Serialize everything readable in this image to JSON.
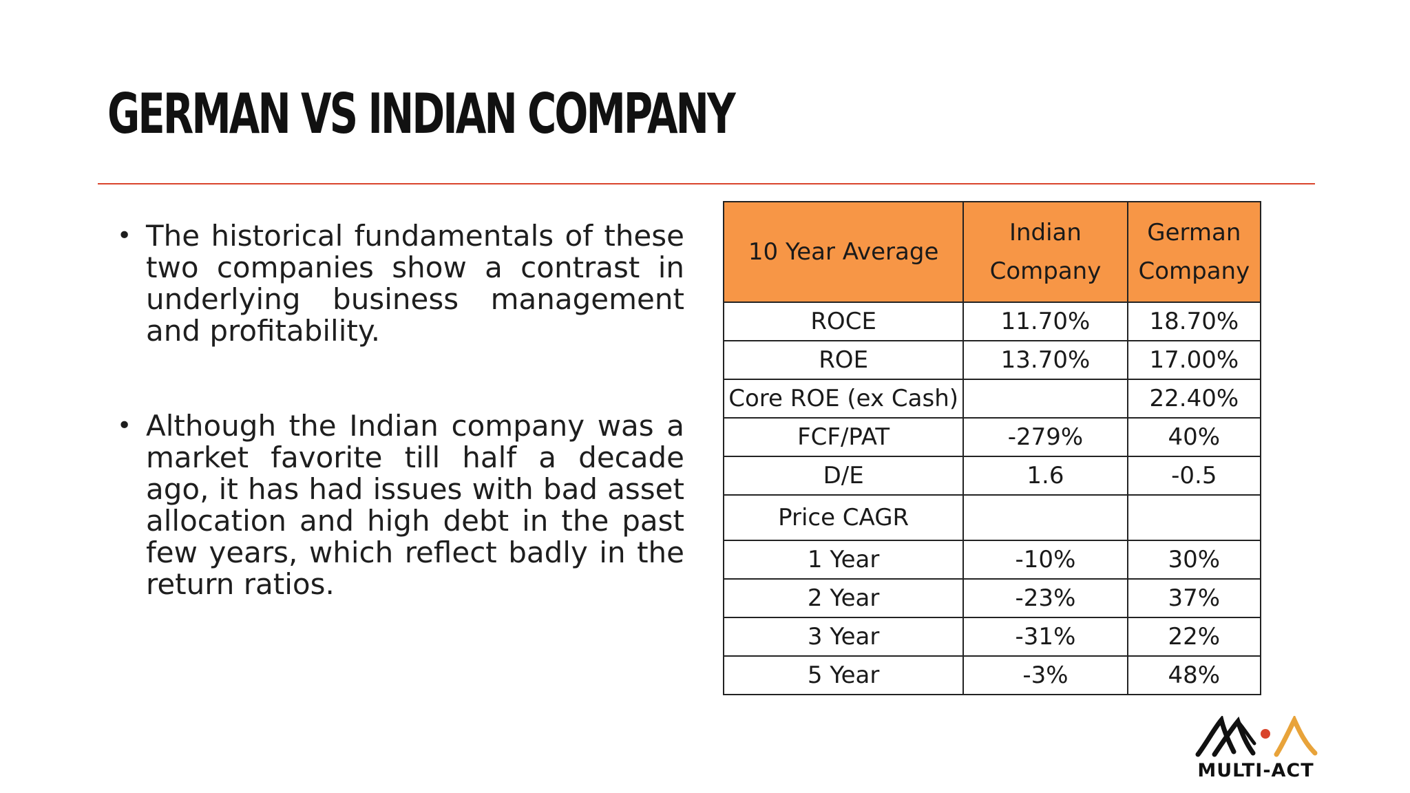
{
  "slide": {
    "title": "GERMAN VS INDIAN COMPANY",
    "accent_color": "#d9442b",
    "bullets": [
      "The historical fundamentals of these two companies show a contrast in underlying business management and profitability.",
      "Although the Indian company was a market favorite till half a decade ago, it has had issues with bad asset allocation and high debt in the past few years, which reflect badly in the return ratios."
    ]
  },
  "table": {
    "header_color": "#f79646",
    "headers": [
      "10 Year Average",
      "Indian Company",
      "German Company"
    ],
    "rows": [
      [
        "ROCE",
        "11.70%",
        "18.70%"
      ],
      [
        "ROE",
        "13.70%",
        "17.00%"
      ],
      [
        "Core ROE (ex Cash)",
        "",
        "22.40%"
      ],
      [
        "FCF/PAT",
        "-279%",
        "40%"
      ],
      [
        "D/E",
        "1.6",
        "-0.5"
      ],
      [
        "Price CAGR",
        "",
        ""
      ],
      [
        "1 Year",
        "-10%",
        "30%"
      ],
      [
        "2 Year",
        "-23%",
        "37%"
      ],
      [
        "3 Year",
        "-31%",
        "22%"
      ],
      [
        "5 Year",
        "-3%",
        "48%"
      ]
    ]
  },
  "logo": {
    "text": "MULTI-ACT",
    "icon": "multi-act-logo-icon",
    "dot_color": "#d9442b",
    "accent_color": "#e8a33a"
  }
}
